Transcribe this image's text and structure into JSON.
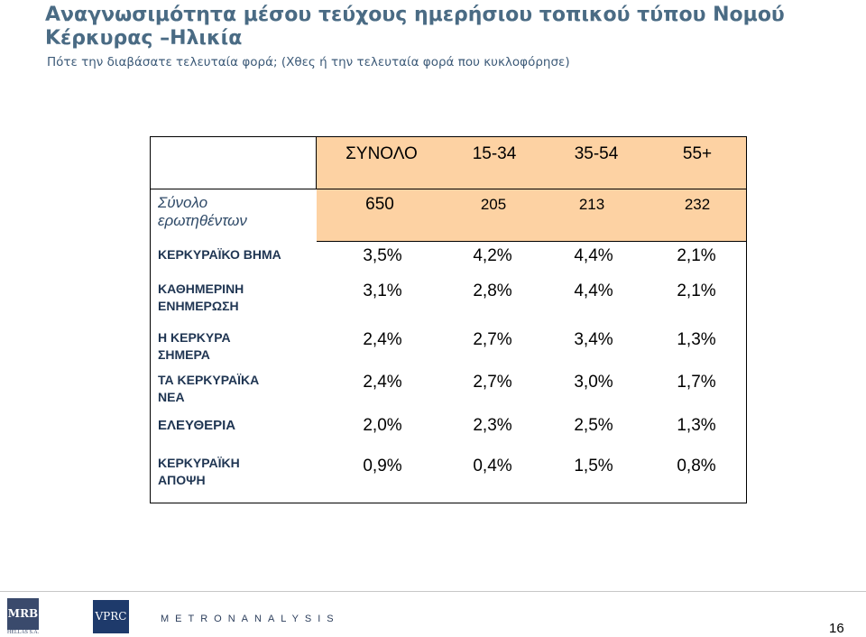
{
  "title": "Αναγνωσιμότητα μέσου τεύχους ημερήσιου τοπικού τύπου Νομού Κέρκυρας –Ηλικία",
  "title_line1": "Αναγνωσιμότητα μέσου τεύχους ημερήσιου τοπικού τύπου Νομού",
  "title_line2": "Κέρκυρας –Ηλικία",
  "subtitle": "Πότε την διαβάσατε τελευταία φορά; (Χθες ή την τελευταία φορά που κυκλοφόρησε)",
  "table": {
    "columns": [
      "ΣΥΝΟΛΟ",
      "15-34",
      "35-54",
      "55+"
    ],
    "respondents_label": "Σύνολο ερωτηθέντων",
    "respondents_label_line1": "Σύνολο",
    "respondents_label_line2": "ερωτηθέντων",
    "respondents": [
      "650",
      "205",
      "213",
      "232"
    ],
    "rows": [
      {
        "label_line1": "ΚΕΡΚΥΡΑΪΚΟ ΒΗΜΑ",
        "label_line2": "",
        "values": [
          "3,5%",
          "4,2%",
          "4,4%",
          "2,1%"
        ]
      },
      {
        "label_line1": "ΚΑΘΗΜΕΡΙΝΗ",
        "label_line2": "ΕΝΗΜΕΡΩΣΗ",
        "values": [
          "3,1%",
          "2,8%",
          "4,4%",
          "2,1%"
        ]
      },
      {
        "label_line1": "Η ΚΕΡΚΥΡΑ",
        "label_line2": "ΣΗΜΕΡΑ",
        "values": [
          "2,4%",
          "2,7%",
          "3,4%",
          "1,3%"
        ]
      },
      {
        "label_line1": "ΤΑ ΚΕΡΚΥΡΑΪΚΑ",
        "label_line2": "ΝΕΑ",
        "values": [
          "2,4%",
          "2,7%",
          "3,0%",
          "1,7%"
        ]
      },
      {
        "label_line1": "ΕΛΕΥΘΕΡΙΑ",
        "label_line2": "",
        "values": [
          "2,0%",
          "2,3%",
          "2,5%",
          "1,3%"
        ]
      },
      {
        "label_line1": "ΚΕΡΚΥΡΑΪΚΗ",
        "label_line2": "ΑΠΟΨΗ",
        "values": [
          "0,9%",
          "0,4%",
          "1,5%",
          "0,8%"
        ]
      }
    ]
  },
  "footer": {
    "logo_mrb": "MRB",
    "logo_mrb_sub": "HELLAS S.A.",
    "logo_vprc": "VPRC",
    "metron": "METRONANALYSIS",
    "page_number": "16"
  },
  "colors": {
    "title": "#4a6b84",
    "header_fill": "#fdd2a3",
    "row_label": "#1f3552"
  }
}
